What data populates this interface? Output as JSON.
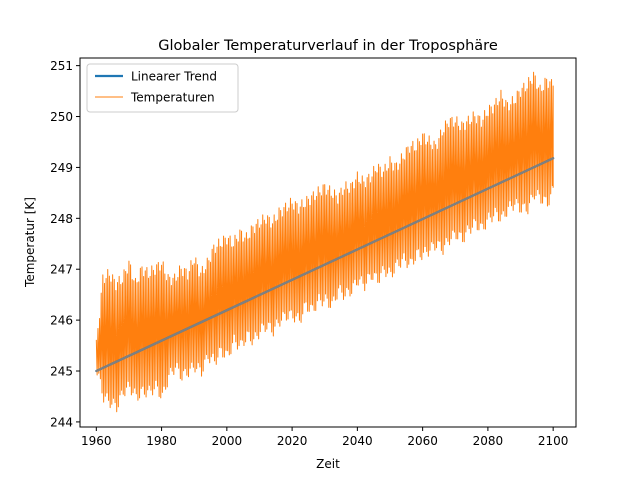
{
  "chart_data": {
    "type": "line",
    "title": "Globaler Temperaturverlauf in der Troposphäre",
    "xlabel": "Zeit",
    "ylabel": "Temperatur [K]",
    "xlim": [
      1955,
      2107
    ],
    "ylim": [
      243.9,
      251.15
    ],
    "xticks": [
      1960,
      1980,
      2000,
      2020,
      2040,
      2060,
      2080,
      2100
    ],
    "yticks": [
      244,
      245,
      246,
      247,
      248,
      249,
      250,
      251
    ],
    "grid": false,
    "legend_position": "top-left",
    "series": [
      {
        "name": "Linearer Trend",
        "color": "#1f77b4",
        "style": "thick",
        "x": [
          1960,
          2100
        ],
        "y": [
          245.0,
          249.18
        ]
      },
      {
        "name": "Temperaturen",
        "color": "#ff7f0e",
        "style": "thin",
        "x": [
          1960,
          1962,
          1964,
          1966,
          1968,
          1970,
          1972,
          1974,
          1976,
          1978,
          1980,
          1982,
          1984,
          1986,
          1988,
          1990,
          1992,
          1994,
          1996,
          1998,
          2000,
          2002,
          2004,
          2006,
          2008,
          2010,
          2012,
          2014,
          2016,
          2018,
          2020,
          2022,
          2024,
          2026,
          2028,
          2030,
          2032,
          2034,
          2036,
          2038,
          2040,
          2042,
          2044,
          2046,
          2048,
          2050,
          2052,
          2054,
          2056,
          2058,
          2060,
          2062,
          2064,
          2066,
          2068,
          2070,
          2072,
          2074,
          2076,
          2078,
          2080,
          2082,
          2084,
          2086,
          2088,
          2090,
          2092,
          2094,
          2096,
          2098,
          2100
        ],
        "y_max": [
          245.5,
          246.8,
          246.9,
          246.7,
          246.8,
          247.1,
          246.7,
          247.0,
          246.9,
          247.0,
          247.1,
          246.8,
          246.8,
          247.0,
          246.9,
          247.2,
          246.9,
          247.1,
          247.4,
          247.5,
          247.6,
          247.5,
          247.7,
          247.6,
          247.8,
          247.9,
          248.0,
          247.9,
          248.1,
          248.2,
          248.3,
          248.2,
          248.3,
          248.4,
          248.5,
          248.6,
          248.5,
          248.4,
          248.6,
          248.6,
          248.8,
          248.7,
          248.8,
          249.0,
          248.9,
          249.1,
          249.0,
          249.2,
          249.4,
          249.4,
          249.6,
          249.5,
          249.4,
          249.7,
          249.9,
          249.9,
          249.8,
          249.9,
          250.0,
          249.9,
          250.1,
          250.2,
          250.4,
          250.2,
          250.3,
          250.5,
          250.6,
          250.8,
          250.5,
          250.7,
          250.6
        ],
        "y_min": [
          245.0,
          244.5,
          244.4,
          244.3,
          244.6,
          244.7,
          244.5,
          244.6,
          244.6,
          244.7,
          244.5,
          244.9,
          245.1,
          244.9,
          245.0,
          245.1,
          245.0,
          245.3,
          245.2,
          245.4,
          245.3,
          245.6,
          245.5,
          245.7,
          245.6,
          245.8,
          245.9,
          245.8,
          246.0,
          246.1,
          246.1,
          246.0,
          246.3,
          246.2,
          246.4,
          246.4,
          246.3,
          246.6,
          246.5,
          246.6,
          246.8,
          246.7,
          246.9,
          246.8,
          247.0,
          246.9,
          247.1,
          247.2,
          247.1,
          247.3,
          247.3,
          247.4,
          247.5,
          247.4,
          247.6,
          247.7,
          247.6,
          247.8,
          247.9,
          247.8,
          248.0,
          248.1,
          248.0,
          248.2,
          248.3,
          248.2,
          248.2,
          248.5,
          248.4,
          248.3,
          248.6
        ]
      }
    ]
  }
}
